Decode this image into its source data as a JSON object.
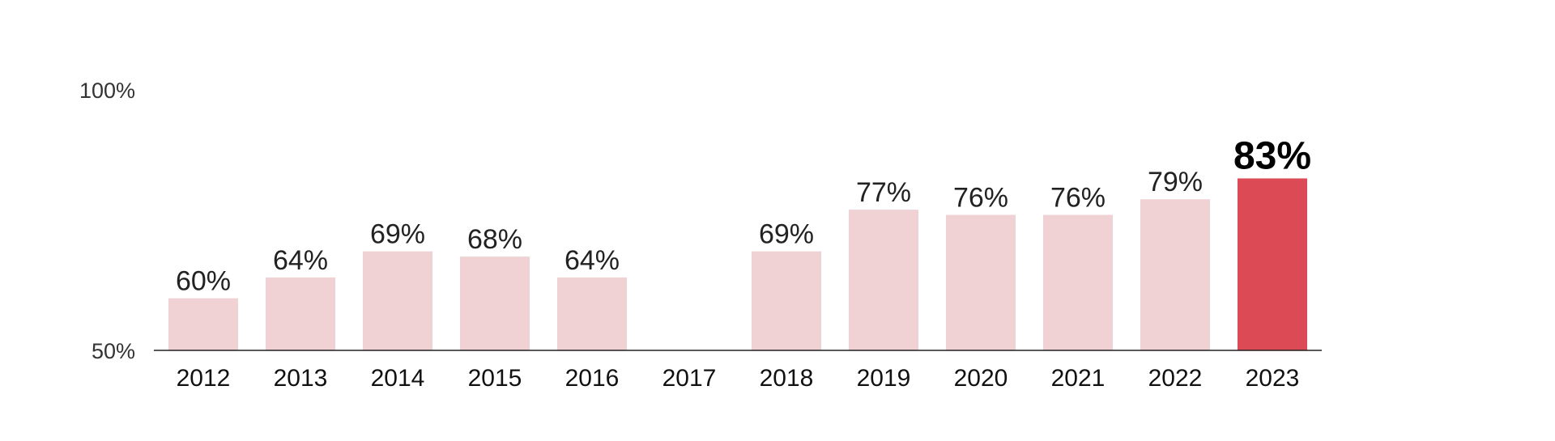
{
  "chart_data": {
    "type": "bar",
    "title": "",
    "xlabel": "",
    "ylabel": "",
    "categories": [
      "2012",
      "2013",
      "2014",
      "2015",
      "2016",
      "2017",
      "2018",
      "2019",
      "2020",
      "2021",
      "2022",
      "2023"
    ],
    "values": [
      60,
      64,
      69,
      68,
      64,
      null,
      69,
      77,
      76,
      76,
      79,
      83
    ],
    "value_labels": [
      "60%",
      "64%",
      "69%",
      "68%",
      "64%",
      "",
      "69%",
      "77%",
      "76%",
      "76%",
      "79%",
      "83%"
    ],
    "ylim": [
      50,
      100
    ],
    "yticks": [
      50,
      100
    ],
    "ytick_labels": [
      "50%",
      "100%"
    ],
    "highlight_category": "2023",
    "grid": false,
    "legend": "none",
    "colors": {
      "bar": "#f0d2d5",
      "highlight_bar": "#db4a55",
      "baseline": "#222222"
    }
  }
}
